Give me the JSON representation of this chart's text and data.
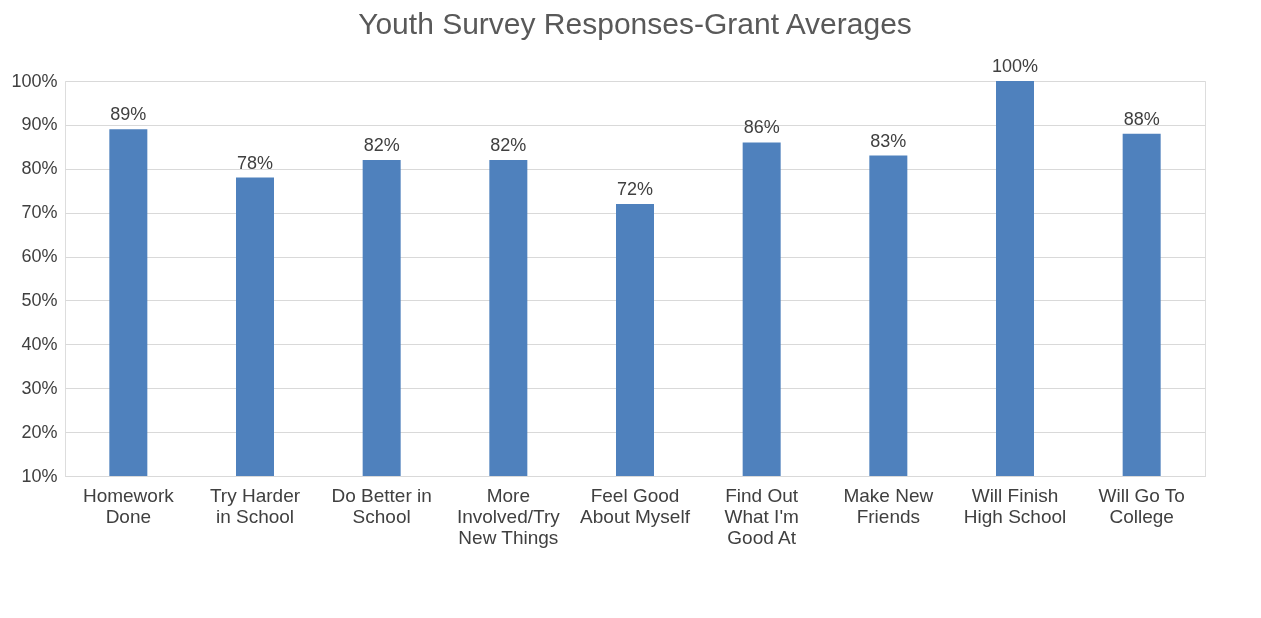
{
  "chart_data": {
    "type": "bar",
    "title": "Youth Survey Responses-Grant Averages",
    "categories": [
      "Homework Done",
      "Try Harder in School",
      "Do Better in School",
      "More Involved/Try New Things",
      "Feel Good About Myself",
      "Find Out What I'm Good At",
      "Make New Friends",
      "Will Finish High School",
      "Will Go To College"
    ],
    "values": [
      89,
      78,
      82,
      82,
      72,
      86,
      83,
      100,
      88
    ],
    "value_labels": [
      "89%",
      "78%",
      "82%",
      "82%",
      "72%",
      "86%",
      "83%",
      "100%",
      "88%"
    ],
    "color": "#4f81bd",
    "ylim": [
      10,
      100
    ],
    "yticks": [
      {
        "value": 10,
        "label": "10%"
      },
      {
        "value": 20,
        "label": "20%"
      },
      {
        "value": 30,
        "label": "30%"
      },
      {
        "value": 40,
        "label": "40%"
      },
      {
        "value": 50,
        "label": "50%"
      },
      {
        "value": 60,
        "label": "60%"
      },
      {
        "value": 70,
        "label": "70%"
      },
      {
        "value": 80,
        "label": "80%"
      },
      {
        "value": 90,
        "label": "90%"
      },
      {
        "value": 100,
        "label": "100%"
      }
    ],
    "grid": "y"
  }
}
